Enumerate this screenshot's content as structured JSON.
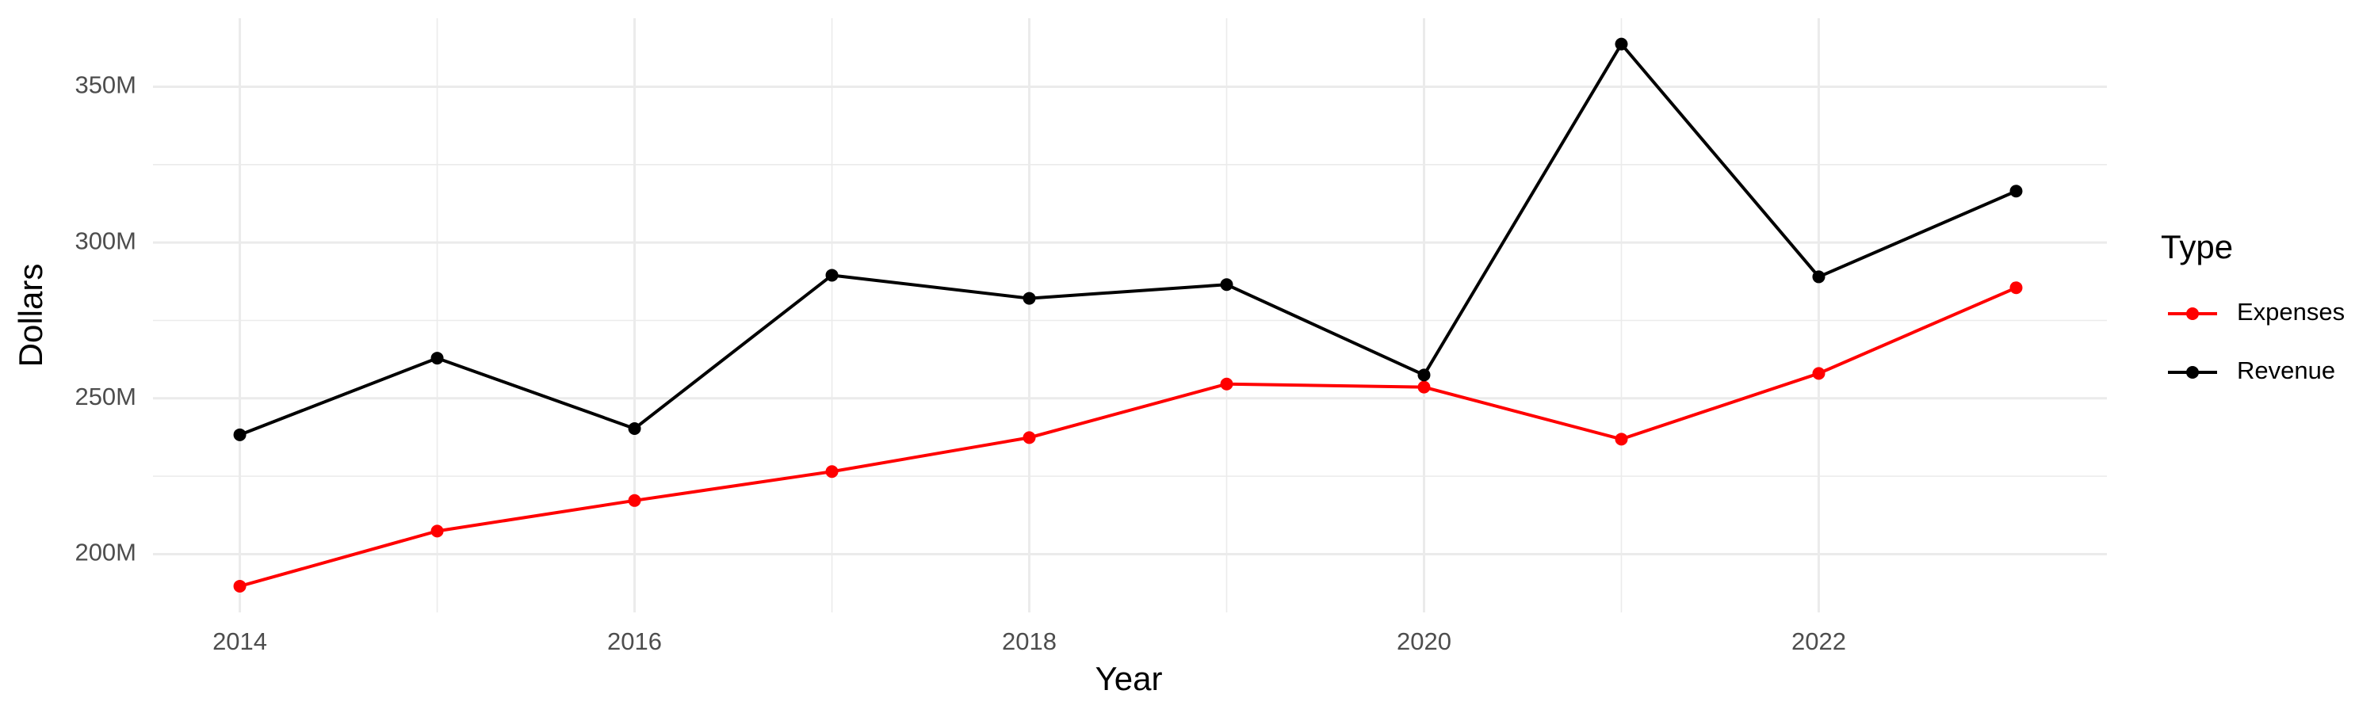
{
  "chart_data": {
    "type": "line",
    "x_label": "Year",
    "y_label": "Dollars",
    "legend_title": "Type",
    "x": [
      2014,
      2015,
      2016,
      2017,
      2018,
      2019,
      2020,
      2021,
      2022,
      2023
    ],
    "series": [
      {
        "name": "Expenses",
        "color": "#ff0000",
        "values": [
          189700000,
          207400000,
          217200000,
          226500000,
          237400000,
          254600000,
          253600000,
          236900000,
          258000000,
          285500000
        ]
      },
      {
        "name": "Revenue",
        "color": "#000000",
        "values": [
          238300000,
          262900000,
          240300000,
          289500000,
          282100000,
          286500000,
          257500000,
          363700000,
          289000000,
          316500000
        ]
      }
    ],
    "xlim": [
      2013.56,
      2023.46
    ],
    "xticks": [
      2014,
      2016,
      2018,
      2020,
      2022
    ],
    "ylim": [
      181300000,
      372000000
    ],
    "yticks": [
      {
        "value": 200000000,
        "label": "200M"
      },
      {
        "value": 250000000,
        "label": "250M"
      },
      {
        "value": 300000000,
        "label": "300M"
      },
      {
        "value": 350000000,
        "label": "350M"
      }
    ],
    "grid": true,
    "legend_position": "right"
  }
}
